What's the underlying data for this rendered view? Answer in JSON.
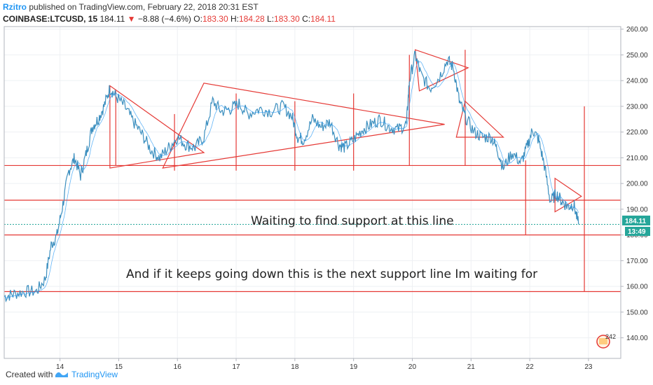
{
  "header": {
    "user": "Rzitro",
    "published": "published on TradingView.com, February 22, 2018 20:31 EST",
    "symbol": "COINBASE:LTCUSD, 15",
    "last": "184.11",
    "change_arrow": "▼",
    "change": "−8.88 (−4.6%)",
    "o_label": "O:",
    "o_value": "183.30",
    "h_label": "H:",
    "h_value": "184.28",
    "l_label": "L:",
    "l_value": "183.30",
    "c_label": "C:",
    "c_value": "184.11"
  },
  "footer": {
    "created_with": "Created with",
    "brand": "TradingView"
  },
  "badges": {
    "price": "184.11",
    "countdown": "13:49",
    "events_count": "242"
  },
  "colors": {
    "price_line": "#3c8fbf",
    "ma_line": "#2196f3",
    "drawing": "#e53935",
    "badge_green": "#26a69a",
    "axis_border": "#b2b5be"
  },
  "chart_data": {
    "type": "line",
    "title": "",
    "xlabel": "",
    "ylabel": "",
    "x_ticks": [
      "14",
      "15",
      "16",
      "17",
      "18",
      "19",
      "20",
      "21",
      "22",
      "23"
    ],
    "y_ticks": [
      "140.00",
      "150.00",
      "160.00",
      "170.00",
      "180.00",
      "190.00",
      "200.00",
      "210.00",
      "220.00",
      "230.00",
      "240.00",
      "250.00",
      "260.00"
    ],
    "ylim": [
      132,
      261
    ],
    "xlim": [
      13.05,
      23.55
    ],
    "grid": true,
    "current_price": 184.11,
    "series": [
      {
        "x": [
          13.05,
          13.2,
          13.4,
          13.6,
          13.75,
          13.85,
          13.95,
          14.05,
          14.15,
          14.25,
          14.35,
          14.45,
          14.55,
          14.65,
          14.75,
          14.85,
          14.95,
          15.1,
          15.25,
          15.4,
          15.55,
          15.7,
          15.85,
          16.0,
          16.15,
          16.3,
          16.45,
          16.6,
          16.75,
          16.9,
          17.05,
          17.2,
          17.4,
          17.6,
          17.8,
          17.95,
          18.05,
          18.15,
          18.3,
          18.45,
          18.6,
          18.75,
          18.85,
          19.0,
          19.15,
          19.3,
          19.45,
          19.6,
          19.75,
          19.9,
          19.95,
          20.05,
          20.15,
          20.3,
          20.45,
          20.6,
          20.7,
          20.8,
          20.9,
          21.05,
          21.2,
          21.35,
          21.45,
          21.55,
          21.7,
          21.85,
          21.95,
          22.05,
          22.15,
          22.25,
          22.35,
          22.45,
          22.55,
          22.65,
          22.75,
          22.83
        ],
        "values": [
          156,
          157,
          158,
          158,
          163,
          176,
          180,
          192,
          205,
          210,
          203,
          212,
          222,
          225,
          230,
          237,
          234,
          230,
          224,
          219,
          213,
          210,
          214,
          218,
          215,
          214,
          218,
          232,
          228,
          229,
          231,
          227,
          229,
          228,
          230,
          226,
          218,
          217,
          225,
          222,
          224,
          215,
          214,
          217,
          221,
          223,
          225,
          222,
          221,
          223,
          240,
          250,
          242,
          237,
          241,
          248,
          245,
          232,
          226,
          220,
          218,
          218,
          213,
          206,
          212,
          208,
          214,
          221,
          217,
          207,
          193,
          196,
          193,
          191,
          192,
          184.11
        ]
      }
    ],
    "annotations": [
      {
        "text": "Waiting to find support at this line"
      },
      {
        "text": "And if it keeps going down this is the next support line Im waiting for"
      }
    ],
    "horizontal_lines": [
      207,
      193.5,
      180,
      158
    ],
    "vertical_lines": [
      {
        "x": 14.95,
        "y1": 207,
        "y2": 236
      },
      {
        "x": 15.95,
        "y1": 205,
        "y2": 227
      },
      {
        "x": 17.0,
        "y1": 205,
        "y2": 235
      },
      {
        "x": 18.0,
        "y1": 205,
        "y2": 232
      },
      {
        "x": 19.0,
        "y1": 205,
        "y2": 235
      },
      {
        "x": 19.95,
        "y1": 207,
        "y2": 250
      },
      {
        "x": 20.9,
        "y1": 207,
        "y2": 252
      },
      {
        "x": 21.93,
        "y1": 180,
        "y2": 209
      },
      {
        "x": 22.93,
        "y1": 158,
        "y2": 230
      }
    ],
    "triangles": [
      {
        "points": [
          [
            14.85,
            238
          ],
          [
            14.85,
            206
          ],
          [
            16.45,
            212
          ]
        ]
      },
      {
        "points": [
          [
            15.75,
            206
          ],
          [
            16.45,
            239
          ],
          [
            20.55,
            223
          ]
        ]
      },
      {
        "points": [
          [
            20.05,
            252
          ],
          [
            20.12,
            236
          ],
          [
            20.95,
            245
          ]
        ]
      },
      {
        "points": [
          [
            20.75,
            218
          ],
          [
            21.55,
            218
          ],
          [
            20.9,
            232
          ]
        ]
      },
      {
        "points": [
          [
            22.43,
            202
          ],
          [
            22.43,
            189
          ],
          [
            22.88,
            195
          ]
        ]
      }
    ]
  }
}
